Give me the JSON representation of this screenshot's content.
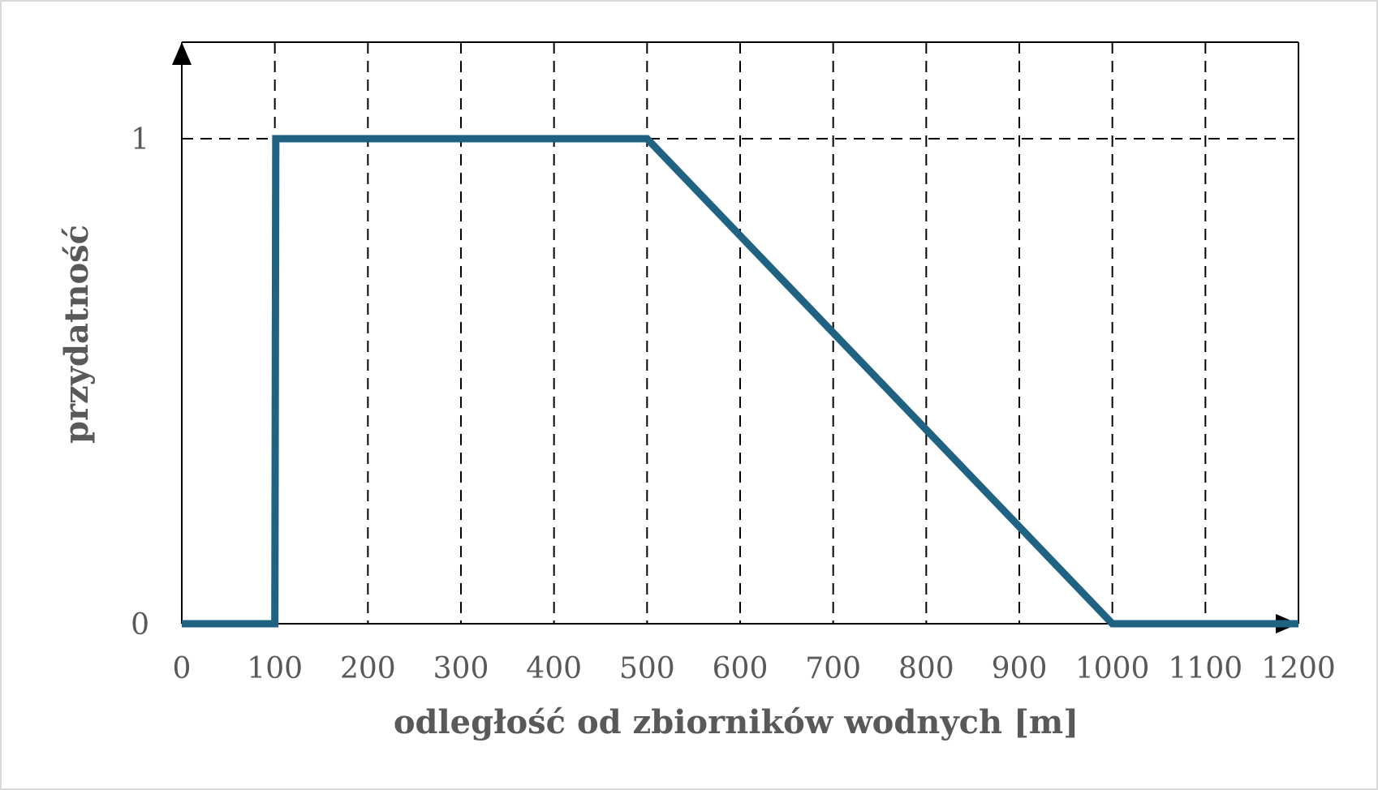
{
  "chart_data": {
    "type": "line",
    "title": "",
    "xlabel": "odległość od zbiorników wodnych [m]",
    "ylabel": "przydatność",
    "xlim": [
      0,
      1200
    ],
    "ylim": [
      0,
      1.2
    ],
    "x_ticks": [
      0,
      100,
      200,
      300,
      400,
      500,
      600,
      700,
      800,
      900,
      1000,
      1100,
      1200
    ],
    "x_tick_labels": [
      "0",
      "100",
      "200",
      "300",
      "400",
      "500",
      "600",
      "700",
      "800",
      "900",
      "1000",
      "1100",
      "1200"
    ],
    "y_ticks": [
      0,
      1
    ],
    "y_tick_labels": [
      "0",
      "1"
    ],
    "grid": true,
    "grid_style": "dashed",
    "line_color": "#1f6282",
    "series": [
      {
        "x": [
          0,
          100,
          101,
          500,
          1000,
          1200
        ],
        "y": [
          0,
          0,
          1,
          1,
          0,
          0
        ]
      }
    ]
  }
}
